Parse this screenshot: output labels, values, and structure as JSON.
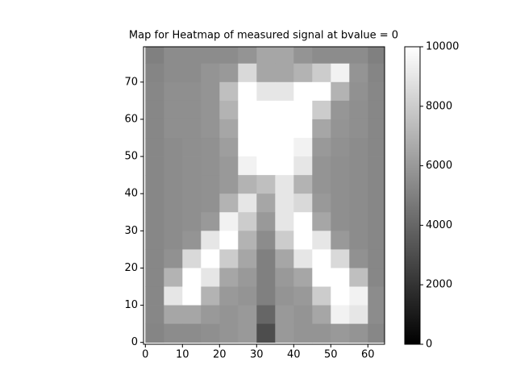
{
  "chart_data": {
    "type": "heatmap",
    "title": "Map for Heatmap of measured signal at bvalue = 0",
    "colormap": "gray",
    "x": [
      2.5,
      7.5,
      12.5,
      17.5,
      22.5,
      27.5,
      32.5,
      37.5,
      42.5,
      47.5,
      52.5,
      57.5,
      62.5
    ],
    "y": [
      77.5,
      72.5,
      67.5,
      62.5,
      57.5,
      52.5,
      47.5,
      42.5,
      37.5,
      32.5,
      27.5,
      22.5,
      17.5,
      12.5,
      7.5,
      2.5
    ],
    "values": [
      [
        5000,
        5500,
        5500,
        5500,
        5500,
        5800,
        6500,
        6500,
        5800,
        5500,
        5500,
        5500,
        5000
      ],
      [
        5200,
        5500,
        5500,
        5800,
        6000,
        8500,
        6500,
        6500,
        7000,
        8000,
        9500,
        5800,
        5200
      ],
      [
        5300,
        5600,
        5600,
        5800,
        7500,
        10000,
        9000,
        9000,
        10000,
        10000,
        7000,
        5700,
        5300
      ],
      [
        5300,
        5600,
        5600,
        5800,
        7000,
        10000,
        10000,
        10000,
        10000,
        8000,
        5900,
        5600,
        5300
      ],
      [
        5300,
        5600,
        5600,
        5800,
        6500,
        10000,
        10000,
        10000,
        10000,
        6500,
        5800,
        5600,
        5300
      ],
      [
        5300,
        5500,
        5600,
        5700,
        6200,
        10000,
        10000,
        10000,
        9500,
        6000,
        5700,
        5500,
        5300
      ],
      [
        5300,
        5500,
        5600,
        5700,
        6000,
        9500,
        10000,
        10000,
        9000,
        5800,
        5600,
        5500,
        5300
      ],
      [
        5300,
        5500,
        5600,
        5700,
        6000,
        7000,
        7500,
        9000,
        7000,
        5800,
        5600,
        5500,
        5300
      ],
      [
        5300,
        5500,
        5600,
        5700,
        7000,
        9000,
        6500,
        9000,
        8500,
        6000,
        5600,
        5500,
        5300
      ],
      [
        5300,
        5500,
        5600,
        6000,
        9500,
        8000,
        6000,
        9000,
        10000,
        6500,
        5600,
        5500,
        5300
      ],
      [
        5300,
        5500,
        5800,
        9000,
        10000,
        7000,
        5500,
        8000,
        10000,
        9000,
        6000,
        5500,
        5300
      ],
      [
        5300,
        5700,
        8500,
        10000,
        8000,
        6500,
        5000,
        6500,
        9000,
        10000,
        8500,
        5700,
        5300
      ],
      [
        5300,
        7000,
        10000,
        9000,
        6500,
        6000,
        5000,
        6000,
        6500,
        10000,
        10000,
        7500,
        5300
      ],
      [
        5300,
        9000,
        10000,
        7000,
        6000,
        5800,
        5000,
        5800,
        6000,
        8000,
        10000,
        9500,
        5500
      ],
      [
        5300,
        6500,
        6500,
        6000,
        5800,
        6000,
        4000,
        6000,
        5800,
        6500,
        9500,
        9000,
        5500
      ],
      [
        5200,
        5500,
        5500,
        5600,
        5800,
        6000,
        3000,
        6000,
        5800,
        5800,
        6000,
        5800,
        5300
      ]
    ],
    "xlim": [
      -0.5,
      64.5
    ],
    "ylim": [
      -0.5,
      79.5
    ],
    "xticks": [
      0,
      10,
      20,
      30,
      40,
      50,
      60
    ],
    "yticks": [
      0,
      10,
      20,
      30,
      40,
      50,
      60,
      70
    ],
    "clim": [
      0,
      10000
    ],
    "cticks": [
      0,
      2000,
      4000,
      6000,
      8000,
      10000
    ]
  }
}
